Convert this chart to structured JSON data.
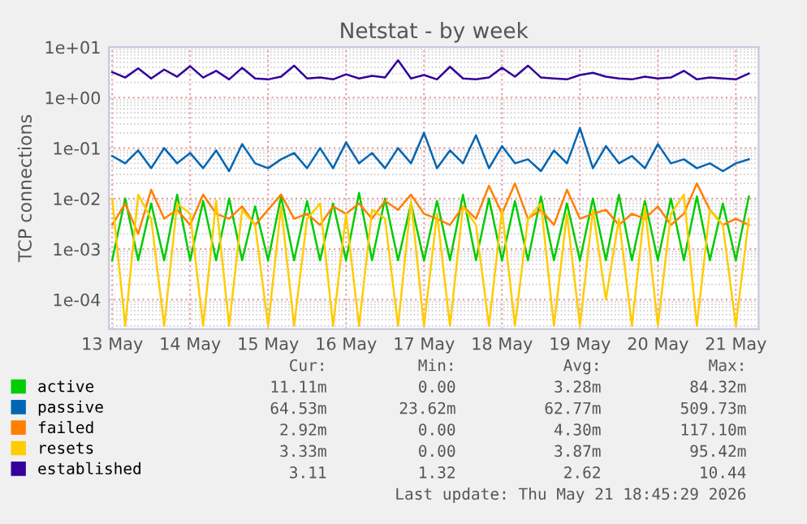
{
  "chart_data": {
    "type": "line",
    "title": "Netstat - by week",
    "ylabel": "TCP connections",
    "log": "y",
    "grid": true,
    "legend": "bottom left",
    "x": [
      "2026-05-13T00:00",
      "2026-05-13T04:00",
      "2026-05-13T08:00",
      "2026-05-13T12:00",
      "2026-05-13T16:00",
      "2026-05-13T20:00",
      "2026-05-14T00:00",
      "2026-05-14T04:00",
      "2026-05-14T08:00",
      "2026-05-14T12:00",
      "2026-05-14T16:00",
      "2026-05-14T20:00",
      "2026-05-15T00:00",
      "2026-05-15T04:00",
      "2026-05-15T08:00",
      "2026-05-15T12:00",
      "2026-05-15T16:00",
      "2026-05-15T20:00",
      "2026-05-16T00:00",
      "2026-05-16T04:00",
      "2026-05-16T08:00",
      "2026-05-16T12:00",
      "2026-05-16T16:00",
      "2026-05-16T20:00",
      "2026-05-17T00:00",
      "2026-05-17T04:00",
      "2026-05-17T08:00",
      "2026-05-17T12:00",
      "2026-05-17T16:00",
      "2026-05-17T20:00",
      "2026-05-18T00:00",
      "2026-05-18T04:00",
      "2026-05-18T08:00",
      "2026-05-18T12:00",
      "2026-05-18T16:00",
      "2026-05-18T20:00",
      "2026-05-19T00:00",
      "2026-05-19T04:00",
      "2026-05-19T08:00",
      "2026-05-19T12:00",
      "2026-05-19T16:00",
      "2026-05-19T20:00",
      "2026-05-20T00:00",
      "2026-05-20T04:00",
      "2026-05-20T08:00",
      "2026-05-20T12:00",
      "2026-05-20T16:00",
      "2026-05-20T20:00",
      "2026-05-21T00:00",
      "2026-05-21T04:00"
    ],
    "series": [
      {
        "name": "active",
        "color": "#00cc00",
        "values": [
          0.0006,
          0.01,
          0.0006,
          0.008,
          0.0006,
          0.012,
          0.0006,
          0.009,
          0.0006,
          0.01,
          0.0006,
          0.007,
          0.0006,
          0.011,
          0.0006,
          0.009,
          0.0006,
          0.008,
          0.0006,
          0.013,
          0.0006,
          0.01,
          0.0006,
          0.008,
          0.0006,
          0.009,
          0.0006,
          0.012,
          0.0006,
          0.01,
          0.0006,
          0.009,
          0.0006,
          0.011,
          0.0006,
          0.008,
          0.0006,
          0.01,
          0.0006,
          0.012,
          0.0006,
          0.009,
          0.0006,
          0.01,
          0.0006,
          0.011,
          0.0006,
          0.008,
          0.0006,
          0.011
        ]
      },
      {
        "name": "passive",
        "color": "#0066b3",
        "values": [
          0.07,
          0.05,
          0.09,
          0.04,
          0.1,
          0.05,
          0.08,
          0.04,
          0.09,
          0.035,
          0.12,
          0.05,
          0.04,
          0.06,
          0.08,
          0.04,
          0.1,
          0.04,
          0.13,
          0.05,
          0.08,
          0.04,
          0.1,
          0.05,
          0.2,
          0.04,
          0.09,
          0.05,
          0.18,
          0.04,
          0.11,
          0.05,
          0.06,
          0.035,
          0.09,
          0.05,
          0.25,
          0.04,
          0.11,
          0.05,
          0.07,
          0.04,
          0.12,
          0.05,
          0.06,
          0.04,
          0.05,
          0.035,
          0.05,
          0.06
        ]
      },
      {
        "name": "failed",
        "color": "#ff8000",
        "values": [
          0.003,
          0.008,
          0.002,
          0.015,
          0.004,
          0.006,
          0.003,
          0.012,
          0.005,
          0.004,
          0.007,
          0.003,
          0.006,
          0.012,
          0.004,
          0.005,
          0.003,
          0.007,
          0.005,
          0.008,
          0.004,
          0.009,
          0.006,
          0.012,
          0.005,
          0.004,
          0.003,
          0.007,
          0.004,
          0.018,
          0.005,
          0.02,
          0.004,
          0.006,
          0.003,
          0.015,
          0.004,
          0.005,
          0.006,
          0.003,
          0.005,
          0.004,
          0.007,
          0.003,
          0.005,
          0.02,
          0.006,
          0.003,
          0.004,
          0.003
        ]
      },
      {
        "name": "resets",
        "color": "#ffcc00",
        "values": [
          0.01,
          3e-05,
          0.012,
          0.004,
          3e-05,
          0.008,
          0.005,
          3e-05,
          0.009,
          3e-05,
          0.006,
          0.003,
          3e-05,
          0.007,
          3e-05,
          0.004,
          0.008,
          3e-05,
          0.005,
          3e-05,
          0.006,
          0.004,
          3e-05,
          0.009,
          3e-05,
          0.005,
          3e-05,
          0.007,
          0.003,
          3e-05,
          0.006,
          3e-05,
          0.004,
          0.008,
          3e-05,
          0.005,
          3e-05,
          0.006,
          0.0001,
          0.004,
          3e-05,
          0.007,
          3e-05,
          0.005,
          0.012,
          3e-05,
          0.006,
          0.003,
          3e-05,
          0.004
        ]
      },
      {
        "name": "established",
        "color": "#330099",
        "values": [
          3.2,
          2.5,
          3.8,
          2.4,
          3.6,
          2.6,
          4.2,
          2.5,
          3.4,
          2.3,
          3.9,
          2.4,
          2.3,
          2.6,
          4.3,
          2.4,
          2.5,
          2.3,
          2.9,
          2.4,
          2.7,
          2.5,
          5.5,
          2.4,
          2.8,
          2.3,
          4.1,
          2.4,
          2.3,
          2.5,
          3.9,
          2.6,
          4.3,
          2.5,
          2.4,
          2.3,
          2.8,
          3.1,
          2.6,
          2.4,
          2.3,
          2.6,
          2.4,
          2.5,
          3.4,
          2.3,
          2.5,
          2.4,
          2.3,
          3.0
        ]
      }
    ],
    "xlim": [
      "2026-05-12T23:00",
      "2026-05-21T07:00"
    ],
    "xticks": [
      {
        "value": "2026-05-13",
        "label": "13 May"
      },
      {
        "value": "2026-05-14",
        "label": "14 May"
      },
      {
        "value": "2026-05-15",
        "label": "15 May"
      },
      {
        "value": "2026-05-16",
        "label": "16 May"
      },
      {
        "value": "2026-05-17",
        "label": "17 May"
      },
      {
        "value": "2026-05-18",
        "label": "18 May"
      },
      {
        "value": "2026-05-19",
        "label": "19 May"
      },
      {
        "value": "2026-05-20",
        "label": "20 May"
      },
      {
        "value": "2026-05-21",
        "label": "21 May"
      }
    ],
    "ylim": [
      2.6e-05,
      10
    ],
    "yticks": [
      {
        "value": 0.0001,
        "label": "1e-04"
      },
      {
        "value": 0.001,
        "label": "1e-03"
      },
      {
        "value": 0.01,
        "label": "1e-02"
      },
      {
        "value": 0.1,
        "label": "1e-01"
      },
      {
        "value": 1,
        "label": "1e+00"
      },
      {
        "value": 10,
        "label": "1e+01"
      }
    ],
    "annotations": [
      "Cur:",
      "Min:",
      "Avg:",
      "Max:",
      "11.11m",
      "0.00",
      "3.28m",
      "84.32m",
      "64.53m",
      "23.62m",
      "62.77m",
      "509.73m",
      "2.92m",
      "0.00",
      "4.30m",
      "117.10m",
      "3.33m",
      "0.00",
      "3.87m",
      "95.42m",
      "3.11",
      "1.32",
      "2.62",
      "10.44",
      "Last update: Thu May 21 18:45:29 2026"
    ]
  }
}
